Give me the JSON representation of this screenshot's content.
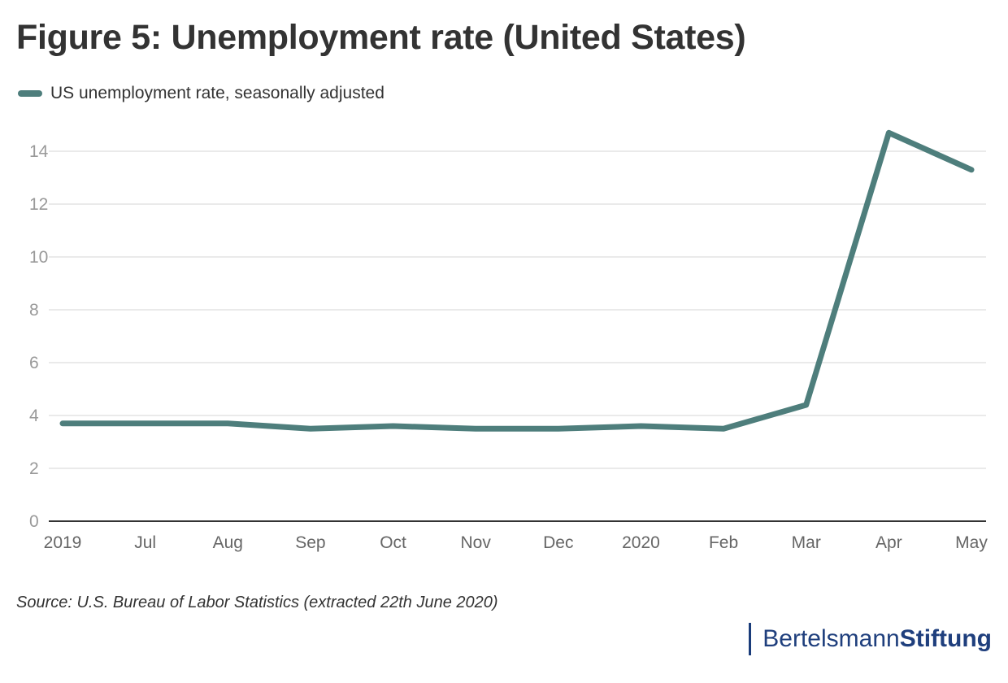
{
  "title": "Figure 5: Unemployment rate (United States)",
  "source": "Source: U.S. Bureau of Labor Statistics (extracted 22th June 2020)",
  "logo": {
    "part1": "Bertelsmann",
    "part2": "Stiftung",
    "color": "#1f3f7d"
  },
  "chart_data": {
    "type": "line",
    "categories": [
      "2019",
      "Jul",
      "Aug",
      "Sep",
      "Oct",
      "Nov",
      "Dec",
      "2020",
      "Feb",
      "Mar",
      "Apr",
      "May"
    ],
    "series": [
      {
        "name": "US unemployment rate, seasonally adjusted",
        "color": "#4e7e7c",
        "values": [
          3.7,
          3.7,
          3.7,
          3.5,
          3.6,
          3.5,
          3.5,
          3.6,
          3.5,
          4.4,
          14.7,
          13.3
        ]
      }
    ],
    "yticks": [
      0,
      2,
      4,
      6,
      8,
      10,
      12,
      14
    ],
    "ylim": [
      0,
      14.8
    ],
    "grid": true,
    "legend": "top-left",
    "xlabel": "",
    "ylabel": ""
  }
}
